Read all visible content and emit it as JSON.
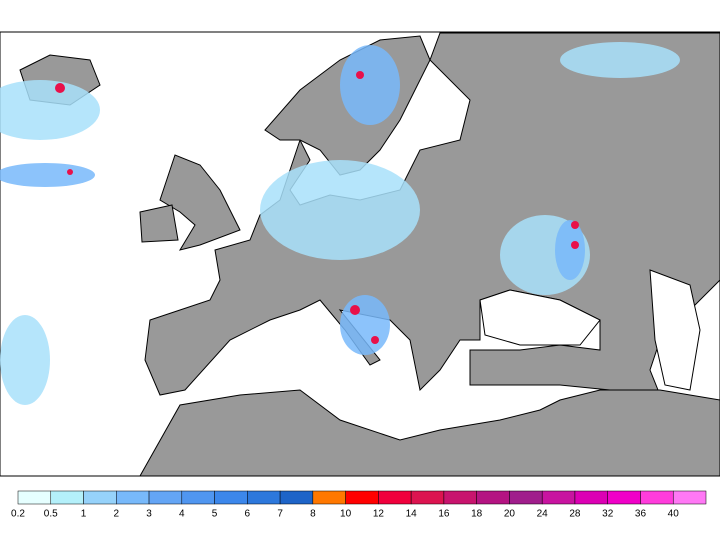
{
  "colorbar": {
    "levels": [
      0.2,
      0.5,
      1,
      2,
      3,
      4,
      5,
      6,
      7,
      8,
      10,
      12,
      14,
      16,
      18,
      20,
      24,
      28,
      32,
      36,
      40
    ],
    "colors": [
      "#e6ffff",
      "#b4f0fa",
      "#96d2fa",
      "#78b9fa",
      "#64a5f5",
      "#5096f0",
      "#3c87eb",
      "#2d78dc",
      "#1e64c8",
      "#ff7800",
      "#ff0000",
      "#f0003c",
      "#dc1450",
      "#c8146e",
      "#b41482",
      "#a01e8c",
      "#c814a0",
      "#dc00b4",
      "#f000c8",
      "#ff3cdc",
      "#ff78f5"
    ]
  }
}
